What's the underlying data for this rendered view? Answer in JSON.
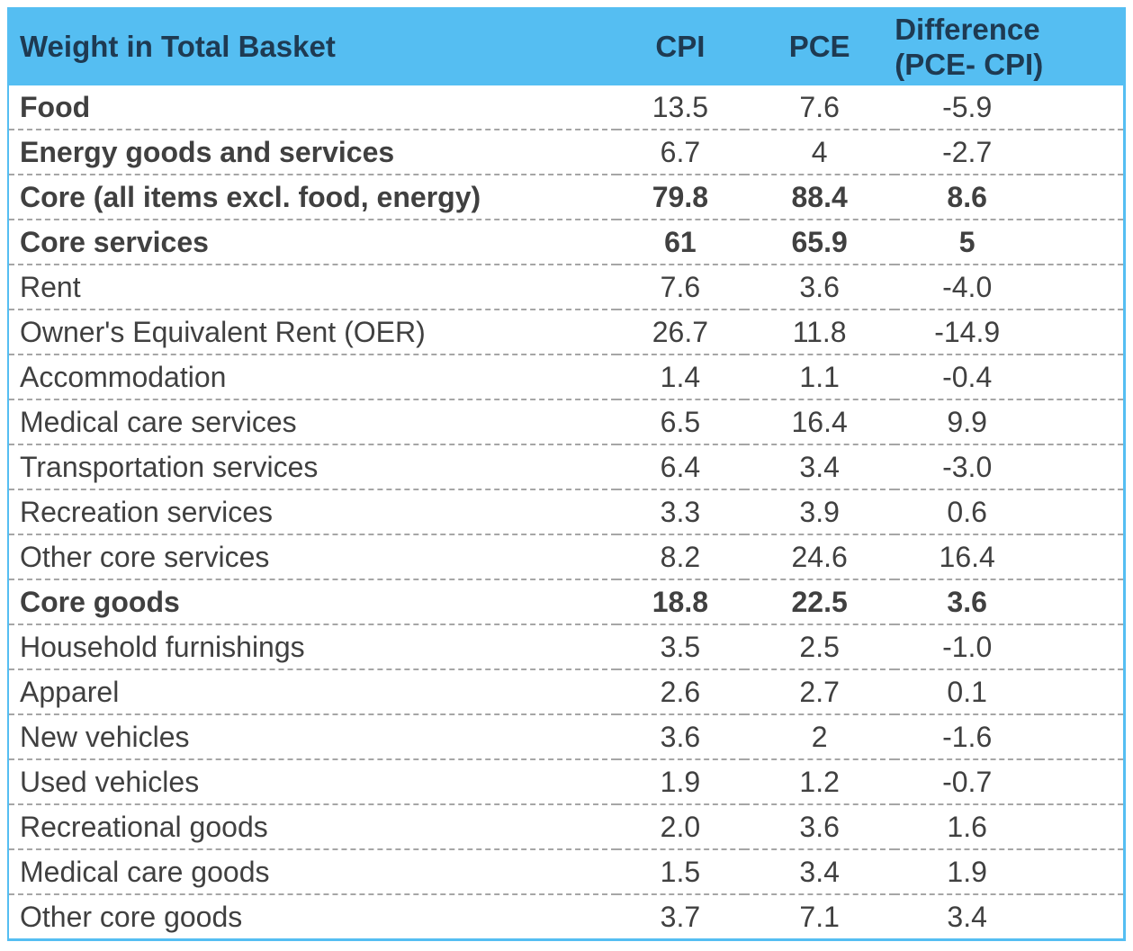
{
  "colors": {
    "header_bg": "#55BEF2",
    "header_text": "#1E3A52",
    "body_text": "#404040",
    "row_divider": "#A6A6A6",
    "table_border": "#55BEF2"
  },
  "table": {
    "header": {
      "item": "Weight in Total Basket",
      "cpi": "CPI",
      "pce": "PCE",
      "diff_line1": "Difference",
      "diff_line2": "(PCE- CPI)"
    },
    "rows": [
      {
        "label": "Food",
        "cpi": "13.5",
        "pce": "7.6",
        "diff": "-5.9",
        "bold": "label"
      },
      {
        "label": "Energy goods and services",
        "cpi": "6.7",
        "pce": "4",
        "diff": "-2.7",
        "bold": "label"
      },
      {
        "label": "Core (all items excl. food, energy)",
        "cpi": "79.8",
        "pce": "88.4",
        "diff": "8.6",
        "bold": "all"
      },
      {
        "label": "Core services",
        "cpi": "61",
        "pce": "65.9",
        "diff": "5",
        "bold": "all"
      },
      {
        "label": "Rent",
        "cpi": "7.6",
        "pce": "3.6",
        "diff": "-4.0",
        "bold": "none"
      },
      {
        "label": "Owner's Equivalent Rent (OER)",
        "cpi": "26.7",
        "pce": "11.8",
        "diff": "-14.9",
        "bold": "none"
      },
      {
        "label": "Accommodation",
        "cpi": "1.4",
        "pce": "1.1",
        "diff": "-0.4",
        "bold": "none"
      },
      {
        "label": "Medical care services",
        "cpi": "6.5",
        "pce": "16.4",
        "diff": "9.9",
        "bold": "none"
      },
      {
        "label": "Transportation services",
        "cpi": "6.4",
        "pce": "3.4",
        "diff": "-3.0",
        "bold": "none"
      },
      {
        "label": "Recreation services",
        "cpi": "3.3",
        "pce": "3.9",
        "diff": "0.6",
        "bold": "none"
      },
      {
        "label": "Other core services",
        "cpi": "8.2",
        "pce": "24.6",
        "diff": "16.4",
        "bold": "none"
      },
      {
        "label": "Core goods",
        "cpi": "18.8",
        "pce": "22.5",
        "diff": "3.6",
        "bold": "all"
      },
      {
        "label": "Household furnishings",
        "cpi": "3.5",
        "pce": "2.5",
        "diff": "-1.0",
        "bold": "none"
      },
      {
        "label": "Apparel",
        "cpi": "2.6",
        "pce": "2.7",
        "diff": "0.1",
        "bold": "none"
      },
      {
        "label": "New vehicles",
        "cpi": "3.6",
        "pce": "2",
        "diff": "-1.6",
        "bold": "none"
      },
      {
        "label": "Used vehicles",
        "cpi": "1.9",
        "pce": "1.2",
        "diff": "-0.7",
        "bold": "none"
      },
      {
        "label": "Recreational goods",
        "cpi": "2.0",
        "pce": "3.6",
        "diff": "1.6",
        "bold": "none"
      },
      {
        "label": "Medical care goods",
        "cpi": "1.5",
        "pce": "3.4",
        "diff": "1.9",
        "bold": "none"
      },
      {
        "label": "Other core goods",
        "cpi": "3.7",
        "pce": "7.1",
        "diff": "3.4",
        "bold": "none"
      }
    ]
  },
  "chart_data": {
    "type": "table",
    "title": "Weight in Total Basket",
    "columns": [
      "Weight in Total Basket",
      "CPI",
      "PCE",
      "Difference (PCE- CPI)"
    ],
    "categories": [
      "Food",
      "Energy goods and services",
      "Core (all items excl. food, energy)",
      "Core services",
      "Rent",
      "Owner's Equivalent Rent (OER)",
      "Accommodation",
      "Medical care services",
      "Transportation services",
      "Recreation services",
      "Other core services",
      "Core goods",
      "Household furnishings",
      "Apparel",
      "New vehicles",
      "Used vehicles",
      "Recreational goods",
      "Medical care goods",
      "Other core goods"
    ],
    "series": [
      {
        "name": "CPI",
        "values": [
          13.5,
          6.7,
          79.8,
          61,
          7.6,
          26.7,
          1.4,
          6.5,
          6.4,
          3.3,
          8.2,
          18.8,
          3.5,
          2.6,
          3.6,
          1.9,
          2.0,
          1.5,
          3.7
        ]
      },
      {
        "name": "PCE",
        "values": [
          7.6,
          4,
          88.4,
          65.9,
          3.6,
          11.8,
          1.1,
          16.4,
          3.4,
          3.9,
          24.6,
          22.5,
          2.5,
          2.7,
          2,
          1.2,
          3.6,
          3.4,
          7.1
        ]
      },
      {
        "name": "Difference (PCE- CPI)",
        "values": [
          -5.9,
          -2.7,
          8.6,
          5,
          -4.0,
          -14.9,
          -0.4,
          9.9,
          -3.0,
          0.6,
          16.4,
          3.6,
          -1.0,
          0.1,
          -1.6,
          -0.7,
          1.6,
          1.9,
          3.4
        ]
      }
    ],
    "layout_hints": {
      "bold_section_rows": [
        "Core (all items excl. food, energy)",
        "Core services",
        "Core goods"
      ],
      "bold_label_only_rows": [
        "Food",
        "Energy goods and services"
      ]
    }
  }
}
